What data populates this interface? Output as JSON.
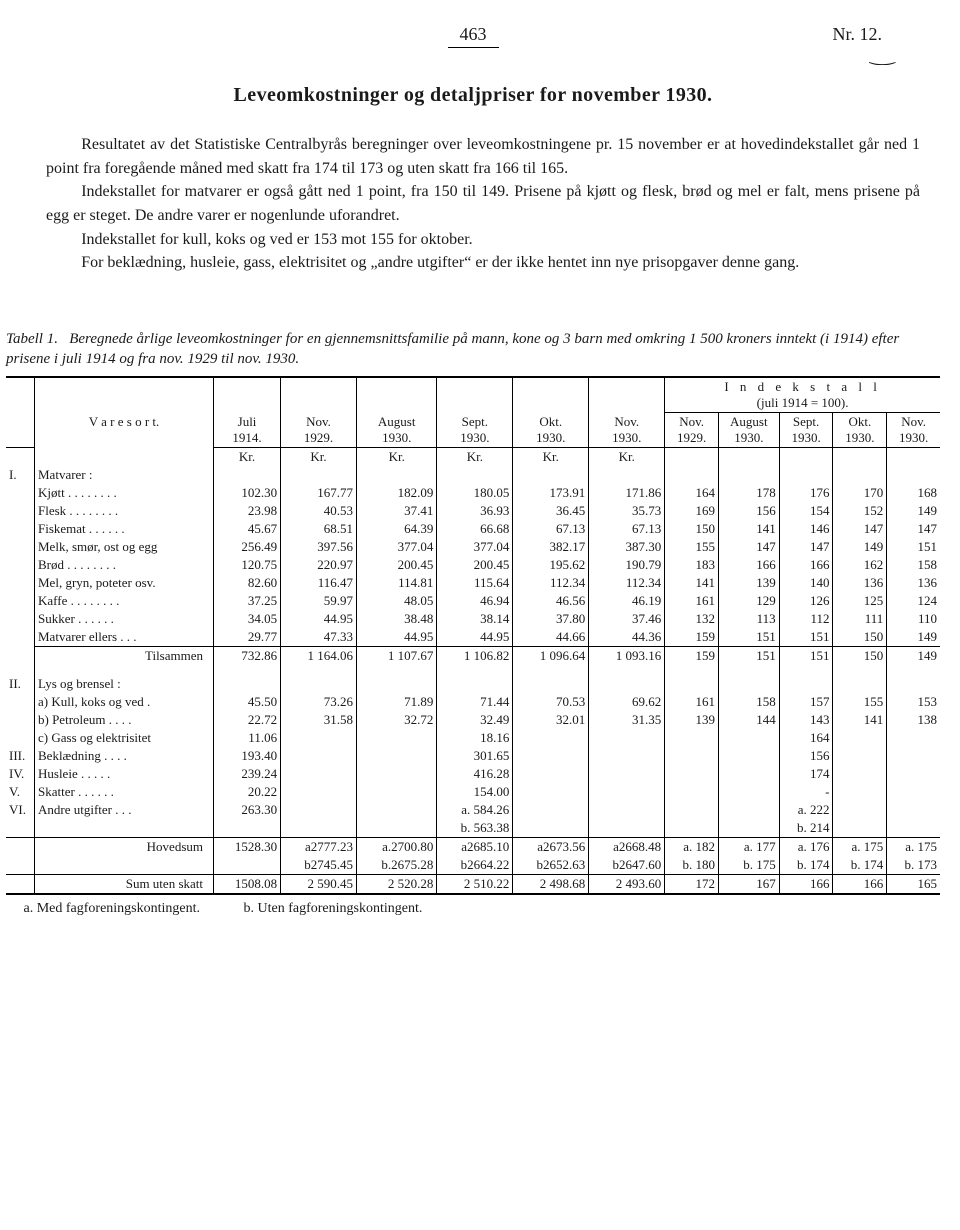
{
  "header": {
    "page_number": "463",
    "issue": "Nr. 12."
  },
  "title": "Leveomkostninger og detaljpriser for november 1930.",
  "paragraphs": [
    "Resultatet av det Statistiske Centralbyrås beregninger over leveomkostningene pr. 15 november er at hovedindekstallet går ned 1 point fra foregående måned med skatt fra 174 til 173 og uten skatt fra 166 til 165.",
    "Indekstallet for matvarer er også gått ned 1 point, fra 150 til 149. Prisene på kjøtt og flesk, brød og mel er falt, mens prisene på egg er steget. De andre varer er nogenlunde uforandret.",
    "Indekstallet for kull, koks og ved er 153 mot 155 for oktober.",
    "For beklædning, husleie, gass, elektrisitet og „andre utgifter“ er der ikke hentet inn nye prisopgaver denne gang."
  ],
  "table_caption": {
    "label": "Tabell 1.",
    "text": "Beregnede årlige leveomkostninger for en gjennemsnittsfamilie på mann, kone og 3 barn med omkring 1 500 kroners inntekt (i 1914) efter prisene i juli 1914 og fra nov. 1929 til nov. 1930."
  },
  "columns": {
    "varesort": "V a r e s o r t.",
    "periods": [
      {
        "top": "Juli",
        "bottom": "1914."
      },
      {
        "top": "Nov.",
        "bottom": "1929."
      },
      {
        "top": "August",
        "bottom": "1930."
      },
      {
        "top": "Sept.",
        "bottom": "1930."
      },
      {
        "top": "Okt.",
        "bottom": "1930."
      },
      {
        "top": "Nov.",
        "bottom": "1930."
      }
    ],
    "index_header_top": "I n d e k s t a l l",
    "index_header_sub": "(juli 1914 = 100).",
    "indices": [
      {
        "top": "Nov.",
        "bottom": "1929."
      },
      {
        "top": "August",
        "bottom": "1930."
      },
      {
        "top": "Sept.",
        "bottom": "1930."
      },
      {
        "top": "Okt.",
        "bottom": "1930."
      },
      {
        "top": "Nov.",
        "bottom": "1930."
      }
    ],
    "kr": "Kr."
  },
  "sections": [
    {
      "num": "I.",
      "title": "Matvarer :",
      "rows": [
        {
          "label": "Kjøtt . . . . . . . .",
          "v": [
            "102.30",
            "167.77",
            "182.09",
            "180.05",
            "173.91",
            "171.86",
            "164",
            "178",
            "176",
            "170",
            "168"
          ]
        },
        {
          "label": "Flesk . . . . . . . .",
          "v": [
            "23.98",
            "40.53",
            "37.41",
            "36.93",
            "36.45",
            "35.73",
            "169",
            "156",
            "154",
            "152",
            "149"
          ]
        },
        {
          "label": "Fiskemat . . . . . .",
          "v": [
            "45.67",
            "68.51",
            "64.39",
            "66.68",
            "67.13",
            "67.13",
            "150",
            "141",
            "146",
            "147",
            "147"
          ]
        },
        {
          "label": "Melk, smør, ost og egg",
          "v": [
            "256.49",
            "397.56",
            "377.04",
            "377.04",
            "382.17",
            "387.30",
            "155",
            "147",
            "147",
            "149",
            "151"
          ]
        },
        {
          "label": "Brød . . . . . . . .",
          "v": [
            "120.75",
            "220.97",
            "200.45",
            "200.45",
            "195.62",
            "190.79",
            "183",
            "166",
            "166",
            "162",
            "158"
          ]
        },
        {
          "label": "Mel, gryn, poteter osv.",
          "v": [
            "82.60",
            "116.47",
            "114.81",
            "115.64",
            "112.34",
            "112.34",
            "141",
            "139",
            "140",
            "136",
            "136"
          ]
        },
        {
          "label": "Kaffe . . . . . . . .",
          "v": [
            "37.25",
            "59.97",
            "48.05",
            "46.94",
            "46.56",
            "46.19",
            "161",
            "129",
            "126",
            "125",
            "124"
          ]
        },
        {
          "label": "Sukker  . . . . . .",
          "v": [
            "34.05",
            "44.95",
            "38.48",
            "38.14",
            "37.80",
            "37.46",
            "132",
            "113",
            "112",
            "111",
            "110"
          ]
        },
        {
          "label": "Matvarer ellers . . .",
          "v": [
            "29.77",
            "47.33",
            "44.95",
            "44.95",
            "44.66",
            "44.36",
            "159",
            "151",
            "151",
            "150",
            "149"
          ]
        }
      ],
      "subtotal": {
        "label": "Tilsammen",
        "v": [
          "732.86",
          "1 164.06",
          "1 107.67",
          "1 106.82",
          "1 096.64",
          "1 093.16",
          "159",
          "151",
          "151",
          "150",
          "149"
        ]
      }
    }
  ],
  "section2": {
    "num": "II.",
    "title": "Lys og brensel :",
    "rows": [
      {
        "label": "a) Kull, koks og ved .",
        "v": [
          "45.50",
          "73.26",
          "71.89",
          "71.44",
          "70.53",
          "69.62",
          "161",
          "158",
          "157",
          "155",
          "153"
        ]
      },
      {
        "label": "b) Petroleum . . . .",
        "v": [
          "22.72",
          "31.58",
          "32.72",
          "32.49",
          "32.01",
          "31.35",
          "139",
          "144",
          "143",
          "141",
          "138"
        ]
      },
      {
        "label": "c) Gass og elektrisitet",
        "v": [
          "11.06",
          "",
          "",
          "18.16",
          "",
          "",
          "",
          "",
          "164",
          "",
          ""
        ]
      }
    ]
  },
  "simple_rows": [
    {
      "num": "III.",
      "label": "Beklædning  . . . .",
      "v": [
        "193.40",
        "",
        "",
        "301.65",
        "",
        "",
        "",
        "",
        "156",
        "",
        ""
      ]
    },
    {
      "num": "IV.",
      "label": "Husleie  . . . . .",
      "v": [
        "239.24",
        "",
        "",
        "416.28",
        "",
        "",
        "",
        "",
        "174",
        "",
        ""
      ]
    },
    {
      "num": "V.",
      "label": "Skatter . . . . . .",
      "v": [
        "20.22",
        "",
        "",
        "154.00",
        "",
        "",
        "",
        "",
        "-",
        "",
        ""
      ]
    }
  ],
  "andre_row": {
    "num": "VI.",
    "label": "Andre utgifter  . . .",
    "a": [
      "263.30",
      "",
      "",
      "a. 584.26",
      "",
      "",
      "",
      "",
      "a. 222",
      "",
      ""
    ],
    "b": [
      "",
      "",
      "",
      "b. 563.38",
      "",
      "",
      "",
      "",
      "b. 214",
      "",
      ""
    ]
  },
  "hovedsum": {
    "label": "Hovedsum",
    "a": [
      "1528.30",
      "a2777.23",
      "a.2700.80",
      "a2685.10",
      "a2673.56",
      "a2668.48",
      "a. 182",
      "a. 177",
      "a. 176",
      "a. 175",
      "a. 175"
    ],
    "b": [
      "",
      "b2745.45",
      "b.2675.28",
      "b2664.22",
      "b2652.63",
      "b2647.60",
      "b. 180",
      "b. 175",
      "b. 174",
      "b. 174",
      "b. 173"
    ]
  },
  "sum_uten_skatt": {
    "label": "Sum uten skatt",
    "v": [
      "1508.08",
      "2 590.45",
      "2 520.28",
      "2 510.22",
      "2 498.68",
      "2 493.60",
      "172",
      "167",
      "166",
      "166",
      "165"
    ]
  },
  "footnotes": {
    "a": "a.  Med fagforeningskontingent.",
    "b": "b.  Uten fagforeningskontingent."
  }
}
